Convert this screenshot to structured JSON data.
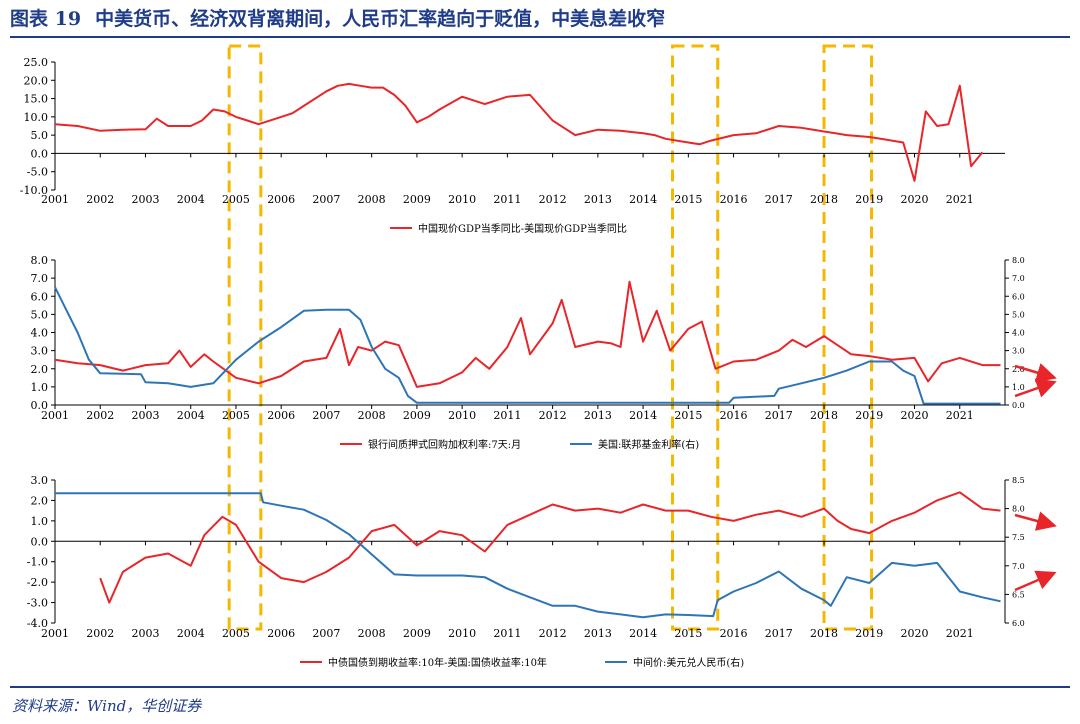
{
  "title": {
    "label": "图表 19",
    "text": "中美货币、经济双背离期间，人民币汇率趋向于贬值，中美息差收窄"
  },
  "source": "资料来源：Wind，华创证券",
  "colors": {
    "red": "#e8262a",
    "blue": "#2e75b6",
    "highlight": "#f5b800",
    "title": "#1f3c88",
    "arrow": "#e8262a"
  },
  "highlight_periods": [
    {
      "start": 2004.85,
      "end": 2005.55
    },
    {
      "start": 2014.65,
      "end": 2015.65
    },
    {
      "start": 2018.0,
      "end": 2019.05
    }
  ],
  "chart_data": [
    {
      "type": "line",
      "x_tick_labels": [
        "2001",
        "2002",
        "2003",
        "2004",
        "2005",
        "2006",
        "2007",
        "2008",
        "2009",
        "2010",
        "2011",
        "2012",
        "2013",
        "2014",
        "2015",
        "2016",
        "2017",
        "2018",
        "2019",
        "2020",
        "2021"
      ],
      "ylim": [
        -10,
        25
      ],
      "y_ticks": [
        "25.0",
        "20.0",
        "15.0",
        "10.0",
        "5.0",
        "0.0",
        "-5.0",
        "-10.0"
      ],
      "y_tick_values": [
        25,
        20,
        15,
        10,
        5,
        0,
        -5,
        -10
      ],
      "series": [
        {
          "name": "中国现价GDP当季同比-美国现价GDP当季同比",
          "color": "#e8262a",
          "x": [
            2001,
            2001.5,
            2002,
            2002.5,
            2003,
            2003.25,
            2003.5,
            2004,
            2004.25,
            2004.5,
            2004.75,
            2005,
            2005.25,
            2005.5,
            2006,
            2006.25,
            2006.5,
            2007,
            2007.25,
            2007.5,
            2007.75,
            2008,
            2008.25,
            2008.5,
            2008.75,
            2009,
            2009.25,
            2009.5,
            2010,
            2010.5,
            2011,
            2011.5,
            2012,
            2012.25,
            2012.5,
            2013,
            2013.5,
            2014,
            2014.25,
            2014.5,
            2015,
            2015.25,
            2015.5,
            2016,
            2016.5,
            2017,
            2017.5,
            2018,
            2018.25,
            2018.5,
            2019,
            2019.25,
            2019.5,
            2019.75,
            2020,
            2020.25,
            2020.5,
            2020.75,
            2021,
            2021.25,
            2021.5
          ],
          "values": [
            8,
            7.5,
            6.2,
            6.5,
            6.6,
            9.5,
            7.5,
            7.5,
            9,
            12,
            11.5,
            10,
            9,
            8,
            10,
            11,
            13,
            17,
            18.5,
            19,
            18.5,
            18,
            18,
            16,
            13,
            8.5,
            10,
            12,
            15.5,
            13.5,
            15.5,
            16,
            9,
            7,
            5,
            6.5,
            6.2,
            5.5,
            5,
            4,
            3,
            2.5,
            3.5,
            5,
            5.5,
            7.5,
            7,
            6,
            5.5,
            5,
            4.5,
            4,
            3.5,
            3,
            -7.5,
            11.5,
            7.5,
            8,
            18.5,
            -3.5,
            0.3
          ]
        }
      ]
    },
    {
      "type": "line",
      "x_tick_labels": [
        "2001",
        "2002",
        "2003",
        "2004",
        "2005",
        "2006",
        "2007",
        "2008",
        "2009",
        "2010",
        "2011",
        "2012",
        "2013",
        "2014",
        "2015",
        "2016",
        "2017",
        "2018",
        "2019",
        "2020",
        "2021"
      ],
      "ylim": [
        0,
        8
      ],
      "y_ticks": [
        "8.0",
        "7.0",
        "6.0",
        "5.0",
        "4.0",
        "3.0",
        "2.0",
        "1.0",
        "0.0"
      ],
      "y_tick_values": [
        8,
        7,
        6,
        5,
        4,
        3,
        2,
        1,
        0
      ],
      "y2lim": [
        0,
        8
      ],
      "y2_ticks": [
        "8.0",
        "7.0",
        "6.0",
        "5.0",
        "4.0",
        "3.0",
        "2.0",
        "1.0",
        "0.0"
      ],
      "series": [
        {
          "name": "银行间质押式回购加权利率:7天:月",
          "color": "#e8262a",
          "x": [
            2001,
            2001.5,
            2002,
            2002.5,
            2003,
            2003.5,
            2003.75,
            2004,
            2004.3,
            2004.5,
            2005,
            2005.5,
            2006,
            2006.5,
            2007,
            2007.3,
            2007.5,
            2007.7,
            2008,
            2008.3,
            2008.6,
            2009,
            2009.5,
            2010,
            2010.3,
            2010.6,
            2011,
            2011.3,
            2011.5,
            2012,
            2012.2,
            2012.5,
            2013,
            2013.3,
            2013.5,
            2013.7,
            2014,
            2014.3,
            2014.6,
            2015,
            2015.3,
            2015.6,
            2016,
            2016.5,
            2017,
            2017.3,
            2017.6,
            2018,
            2018.3,
            2018.6,
            2019,
            2019.5,
            2020,
            2020.3,
            2020.6,
            2021,
            2021.5,
            2021.9
          ],
          "values": [
            2.5,
            2.3,
            2.2,
            1.9,
            2.2,
            2.3,
            3.0,
            2.1,
            2.8,
            2.4,
            1.5,
            1.2,
            1.6,
            2.4,
            2.6,
            4.2,
            2.2,
            3.2,
            3.0,
            3.5,
            3.3,
            1.0,
            1.2,
            1.8,
            2.6,
            2.0,
            3.2,
            4.8,
            2.8,
            4.5,
            5.8,
            3.2,
            3.5,
            3.4,
            3.2,
            6.8,
            3.5,
            5.2,
            3.0,
            4.2,
            4.6,
            2.0,
            2.4,
            2.5,
            3.0,
            3.6,
            3.2,
            3.8,
            3.3,
            2.8,
            2.7,
            2.5,
            2.6,
            1.3,
            2.3,
            2.6,
            2.2,
            2.2
          ]
        },
        {
          "name": "美国:联邦基金利率(右)",
          "color": "#2e75b6",
          "axis": "right",
          "x": [
            2001,
            2001.2,
            2001.5,
            2001.75,
            2002,
            2002.9,
            2003,
            2003.5,
            2004,
            2004.5,
            2005,
            2005.5,
            2006,
            2006.5,
            2007,
            2007.5,
            2007.75,
            2008,
            2008.3,
            2008.6,
            2008.8,
            2009,
            2015.9,
            2016,
            2016.9,
            2017,
            2017.5,
            2018,
            2018.5,
            2019,
            2019.5,
            2019.75,
            2020,
            2020.2,
            2021,
            2021.9
          ],
          "values": [
            6.5,
            5.5,
            4.0,
            2.5,
            1.75,
            1.7,
            1.25,
            1.2,
            1.0,
            1.2,
            2.5,
            3.5,
            4.3,
            5.2,
            5.25,
            5.25,
            4.7,
            3.2,
            2.0,
            1.5,
            0.5,
            0.12,
            0.12,
            0.4,
            0.5,
            0.9,
            1.2,
            1.5,
            1.9,
            2.4,
            2.4,
            1.9,
            1.6,
            0.08,
            0.08,
            0.08
          ]
        }
      ]
    },
    {
      "type": "line",
      "x_tick_labels": [
        "2001",
        "2002",
        "2003",
        "2004",
        "2005",
        "2006",
        "2007",
        "2008",
        "2009",
        "2010",
        "2011",
        "2012",
        "2013",
        "2014",
        "2015",
        "2016",
        "2017",
        "2018",
        "2019",
        "2020",
        "2021"
      ],
      "ylim": [
        -4,
        3
      ],
      "y_ticks": [
        "3.0",
        "2.0",
        "1.0",
        "0.0",
        "-1.0",
        "-2.0",
        "-3.0",
        "-4.0"
      ],
      "y_tick_values": [
        3,
        2,
        1,
        0,
        -1,
        -2,
        -3,
        -4
      ],
      "y2lim": [
        6.0,
        8.5
      ],
      "y2_ticks": [
        "8.5",
        "8.0",
        "7.5",
        "7.0",
        "6.5",
        "6.0"
      ],
      "y2_tick_values": [
        8.5,
        8.0,
        7.5,
        7.0,
        6.5,
        6.0
      ],
      "series": [
        {
          "name": "中债国债到期收益率:10年-美国:国债收益率:10年",
          "color": "#e8262a",
          "x": [
            2002,
            2002.2,
            2002.5,
            2003,
            2003.5,
            2004,
            2004.3,
            2004.7,
            2005,
            2005.5,
            2006,
            2006.5,
            2007,
            2007.5,
            2008,
            2008.5,
            2009,
            2009.5,
            2010,
            2010.5,
            2011,
            2011.5,
            2012,
            2012.5,
            2013,
            2013.5,
            2014,
            2014.5,
            2015,
            2015.5,
            2016,
            2016.5,
            2017,
            2017.5,
            2018,
            2018.3,
            2018.6,
            2019,
            2019.5,
            2020,
            2020.5,
            2021,
            2021.5,
            2021.9
          ],
          "values": [
            -1.8,
            -3.0,
            -1.5,
            -0.8,
            -0.6,
            -1.2,
            0.3,
            1.2,
            0.8,
            -1.0,
            -1.8,
            -2.0,
            -1.5,
            -0.8,
            0.5,
            0.8,
            -0.2,
            0.5,
            0.3,
            -0.5,
            0.8,
            1.3,
            1.8,
            1.5,
            1.6,
            1.4,
            1.8,
            1.5,
            1.5,
            1.2,
            1.0,
            1.3,
            1.5,
            1.2,
            1.6,
            1.0,
            0.6,
            0.4,
            1.0,
            1.4,
            2.0,
            2.4,
            1.6,
            1.5
          ]
        },
        {
          "name": "中间价:美元兑人民币(右)",
          "color": "#2e75b6",
          "axis": "right",
          "x": [
            2001,
            2005.55,
            2005.6,
            2006,
            2006.5,
            2007,
            2007.5,
            2008,
            2008.5,
            2009,
            2010,
            2010.5,
            2011,
            2011.5,
            2012,
            2012.5,
            2013,
            2013.5,
            2014,
            2014.5,
            2015,
            2015.55,
            2015.65,
            2016,
            2016.5,
            2017,
            2017.5,
            2018,
            2018.15,
            2018.5,
            2019,
            2019.5,
            2020,
            2020.5,
            2021,
            2021.5,
            2021.9
          ],
          "values": [
            8.27,
            8.27,
            8.11,
            8.05,
            7.98,
            7.8,
            7.55,
            7.2,
            6.85,
            6.83,
            6.83,
            6.8,
            6.6,
            6.45,
            6.3,
            6.3,
            6.2,
            6.15,
            6.1,
            6.15,
            6.14,
            6.12,
            6.4,
            6.55,
            6.7,
            6.9,
            6.6,
            6.4,
            6.3,
            6.8,
            6.7,
            7.05,
            7.0,
            7.05,
            6.55,
            6.45,
            6.38
          ]
        }
      ]
    }
  ],
  "legend": {
    "chart1": "中国现价GDP当季同比-美国现价GDP当季同比",
    "chart2_red": "银行间质押式回购加权利率:7天:月",
    "chart2_blue": "美国:联邦基金利率(右)",
    "chart3_red": "中债国债到期收益率:10年-美国:国债收益率:10年",
    "chart3_blue": "中间价:美元兑人民币(右)"
  }
}
